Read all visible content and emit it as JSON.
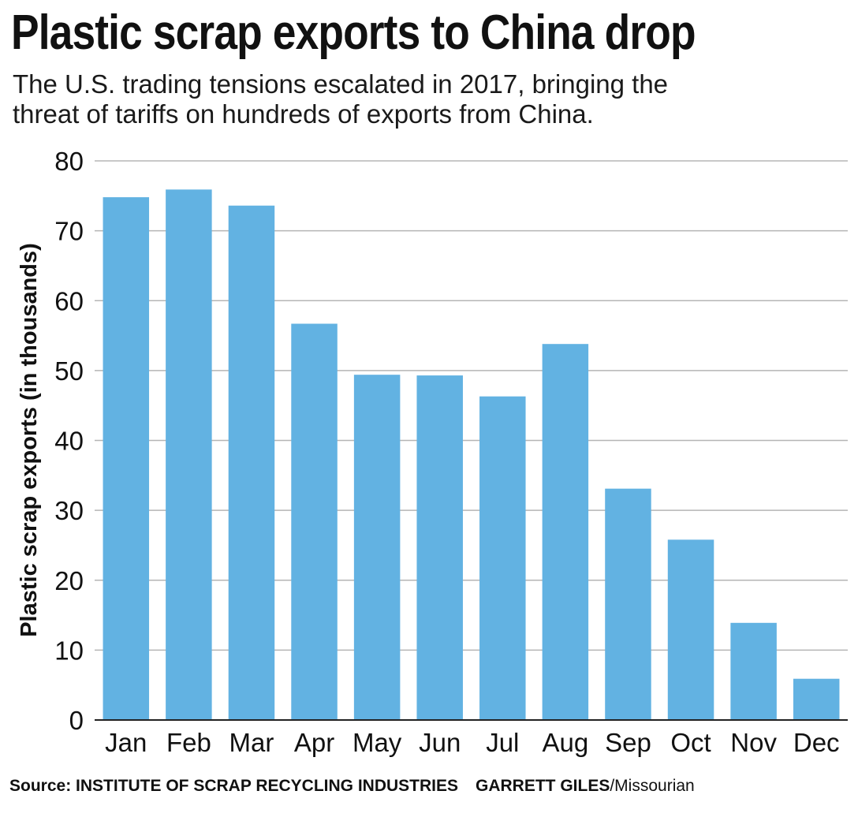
{
  "header": {
    "title": "Plastic scrap exports to China drop",
    "subtitle_line1": "The U.S. trading tensions escalated in 2017, bringing the",
    "subtitle_line2": "threat of tariffs on hundreds of exports from China."
  },
  "footer": {
    "source_label": "Source: INSTITUTE OF SCRAP RECYCLING INDUSTRIES",
    "credit_name": "GARRETT GILES",
    "credit_org": "/Missourian"
  },
  "colors": {
    "bar": "#62b2e2",
    "grid": "#b5b5b5",
    "axis": "#222222",
    "text": "#111111"
  },
  "chart_data": {
    "type": "bar",
    "title": "Plastic scrap exports to China drop",
    "xlabel": "",
    "ylabel": "Plastic scrap exports (in thousands)",
    "ylim": [
      0,
      80
    ],
    "yticks": [
      0,
      10,
      20,
      30,
      40,
      50,
      60,
      70,
      80
    ],
    "grid": true,
    "categories": [
      "Jan",
      "Feb",
      "Mar",
      "Apr",
      "May",
      "Jun",
      "Jul",
      "Aug",
      "Sep",
      "Oct",
      "Nov",
      "Dec"
    ],
    "values": [
      74.8,
      75.9,
      73.6,
      56.7,
      49.4,
      49.3,
      46.3,
      53.8,
      33.1,
      25.8,
      13.9,
      5.9
    ]
  }
}
